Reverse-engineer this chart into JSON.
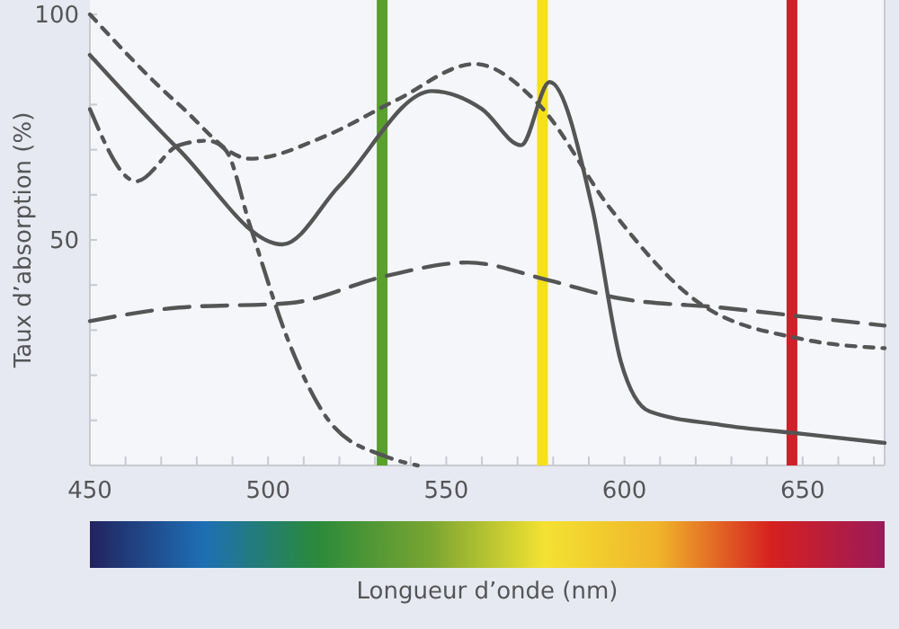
{
  "chart_data": {
    "type": "line",
    "ylabel": "Taux d’absorption (%)",
    "xlabel": "Longueur d’onde (nm)",
    "xlim": [
      450,
      673
    ],
    "ylim": [
      0,
      100
    ],
    "xticks": [
      450,
      {
        "value": 460,
        "label": null
      },
      {
        "value": 470,
        "label": null
      },
      {
        "value": 480,
        "label": null
      },
      {
        "value": 490,
        "label": null
      },
      500,
      {
        "value": 510,
        "label": null
      },
      {
        "value": 520,
        "label": null
      },
      {
        "value": 530,
        "label": null
      },
      {
        "value": 540,
        "label": null
      },
      550,
      {
        "value": 560,
        "label": null
      },
      {
        "value": 570,
        "label": null
      },
      {
        "value": 580,
        "label": null
      },
      {
        "value": 590,
        "label": null
      },
      600,
      {
        "value": 610,
        "label": null
      },
      {
        "value": 620,
        "label": null
      },
      {
        "value": 630,
        "label": null
      },
      {
        "value": 640,
        "label": null
      },
      650,
      {
        "value": 660,
        "label": null
      },
      {
        "value": 670,
        "label": null
      }
    ],
    "yticks": [
      {
        "value": 10,
        "label": null
      },
      {
        "value": 20,
        "label": null
      },
      {
        "value": 30,
        "label": null
      },
      {
        "value": 40,
        "label": null
      },
      50,
      {
        "value": 60,
        "label": null
      },
      {
        "value": 70,
        "label": null
      },
      {
        "value": 80,
        "label": null
      },
      {
        "value": 90,
        "label": null
      },
      100
    ],
    "grid": false,
    "marker": "none",
    "series": [
      {
        "color": "#555555",
        "line_style": "solid",
        "x": [
          450,
          475,
          504,
          520,
          546,
          560,
          571,
          579,
          591,
          599,
          607,
          627,
          650,
          673
        ],
        "values": [
          91,
          70,
          49,
          62,
          83,
          79,
          71,
          85,
          57,
          23,
          12,
          9,
          7,
          5
        ]
      },
      {
        "color": "#555555",
        "line_style": "dotted",
        "x": [
          450,
          475,
          495,
          516,
          536,
          558,
          576,
          596,
          621,
          650,
          673
        ],
        "values": [
          100,
          80,
          68,
          73,
          81,
          89,
          80,
          57,
          36,
          28,
          26
        ]
      },
      {
        "color": "#555555",
        "line_style": "dashdot",
        "x": [
          450,
          463,
          475,
          483,
          488,
          495,
          506,
          518,
          533,
          542
        ],
        "values": [
          79,
          63,
          71,
          72,
          70,
          53,
          27,
          9,
          2,
          0
        ]
      },
      {
        "color": "#555555",
        "line_style": "dashed",
        "x": [
          450,
          475,
          506,
          533,
          556,
          579,
          599,
          627,
          650,
          673
        ],
        "values": [
          32,
          35,
          36,
          42,
          45,
          41,
          37,
          35,
          33,
          31
        ]
      }
    ],
    "ref_lines": [
      {
        "axis": "x",
        "value": 532,
        "color": "#5aa02c"
      },
      {
        "axis": "x",
        "value": 577,
        "color": "#f5e11a"
      },
      {
        "axis": "x",
        "value": 647,
        "color": "#d0202a"
      }
    ]
  }
}
